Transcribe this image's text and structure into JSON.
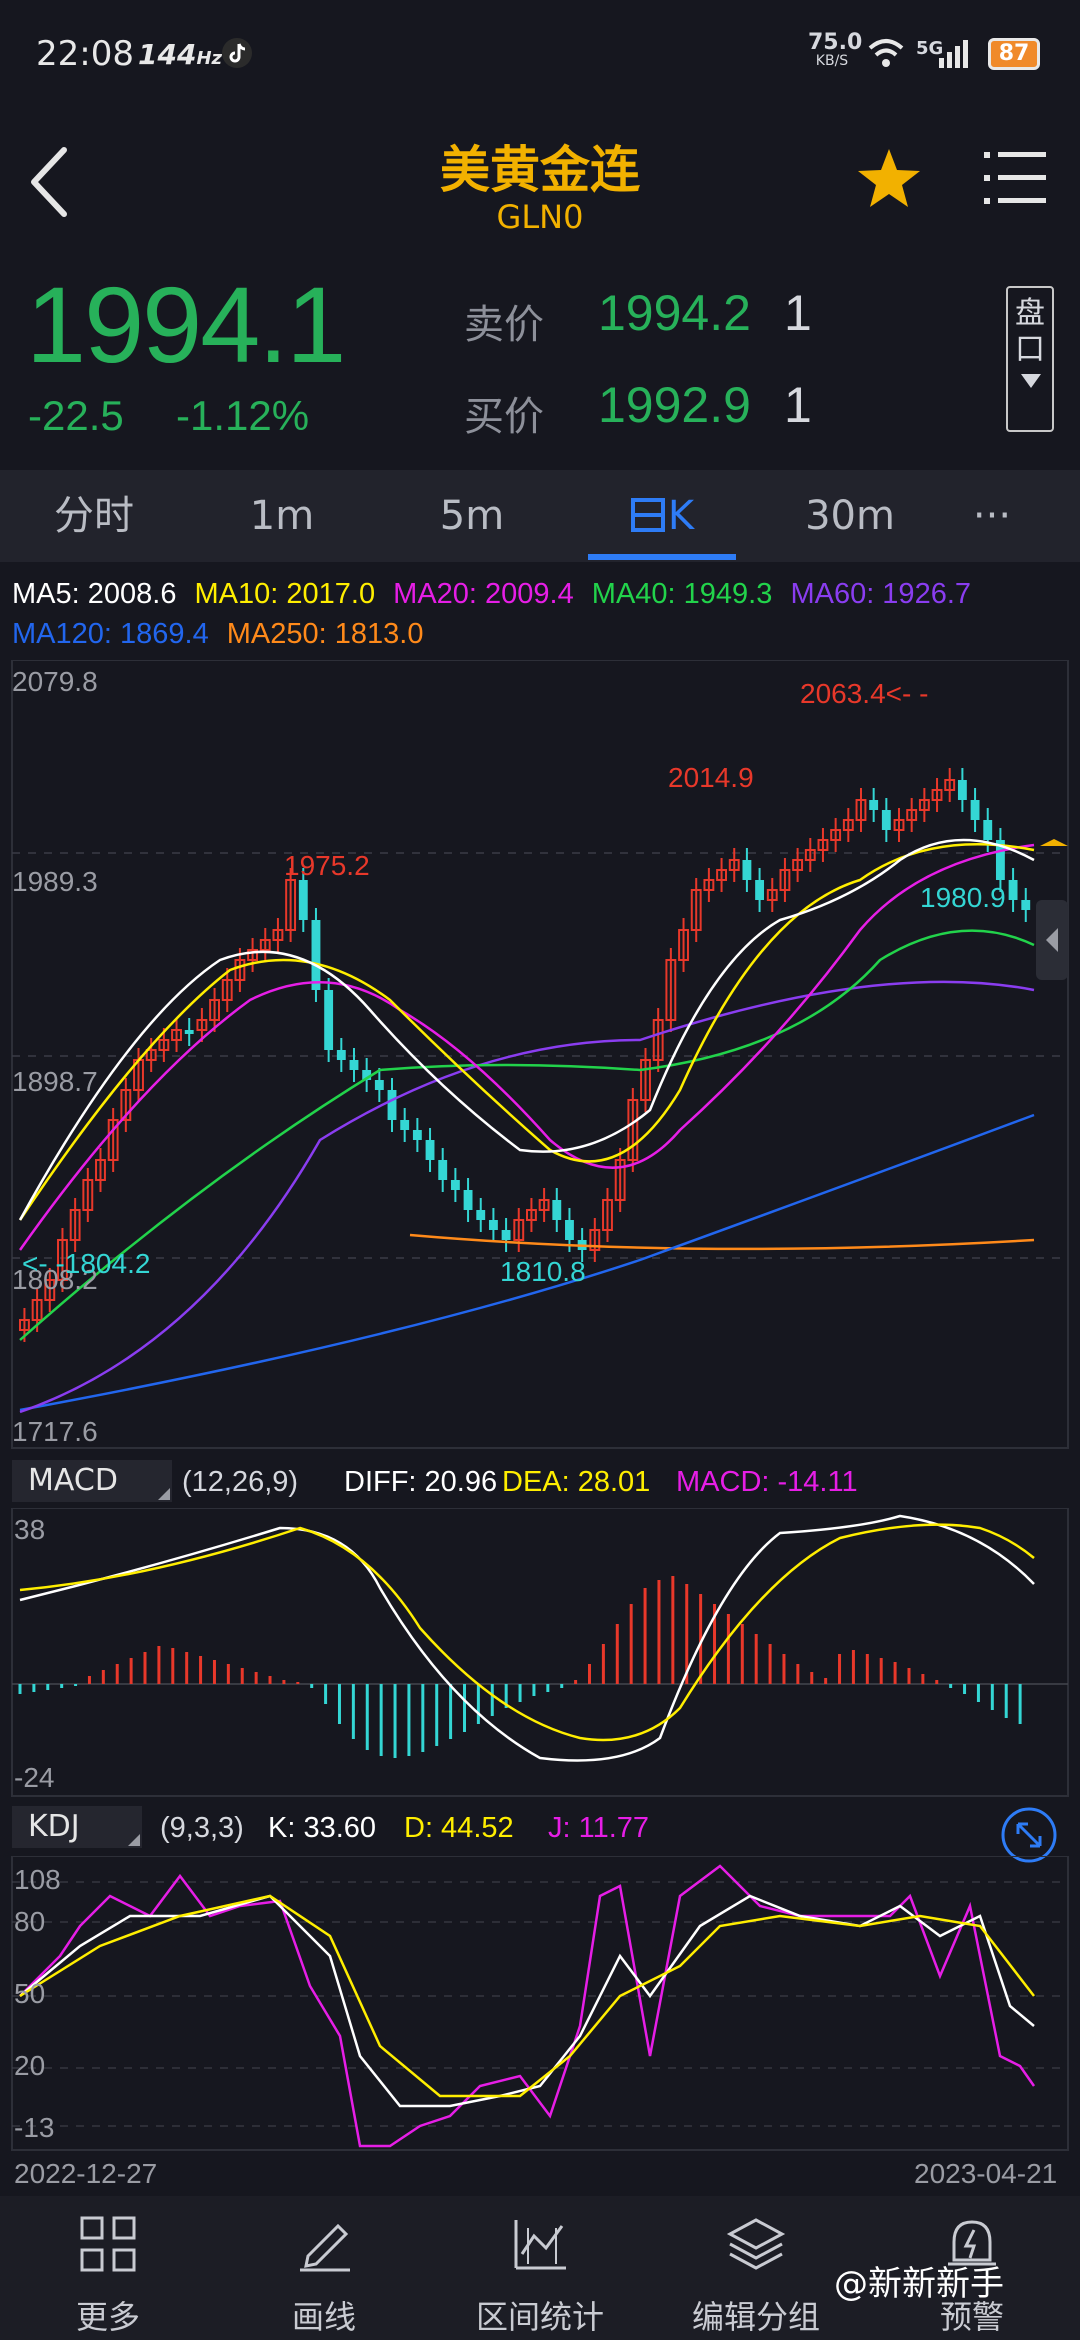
{
  "status_bar": {
    "time": "22:08",
    "refresh": "144",
    "refresh_unit": "Hz",
    "net_speed": "75.0",
    "net_unit": "KB/S",
    "network": "5G",
    "battery": "87"
  },
  "header": {
    "title": "美黄金连",
    "code": "GLN0"
  },
  "quote": {
    "price": "1994.1",
    "change": "-22.5",
    "change_pct": "-1.12%",
    "sell_label": "卖价",
    "sell_price": "1994.2",
    "sell_vol": "1",
    "buy_label": "买价",
    "buy_price": "1992.9",
    "buy_vol": "1",
    "pankou": [
      "盘",
      "口"
    ]
  },
  "tabs": [
    "分时",
    "1m",
    "5m",
    "日K",
    "30m",
    "···"
  ],
  "active_tab": "日K",
  "ma_legend": [
    {
      "text": "MA5: 2008.6",
      "color": "#ffffff"
    },
    {
      "text": "MA10: 2017.0",
      "color": "#ffee00"
    },
    {
      "text": "MA20: 2009.4",
      "color": "#e61ee6"
    },
    {
      "text": "MA40: 1949.3",
      "color": "#22d34b"
    },
    {
      "text": "MA60: 1926.7",
      "color": "#8a3df0"
    },
    {
      "text": "MA120: 1869.4",
      "color": "#2266ee"
    },
    {
      "text": "MA250: 1813.0",
      "color": "#ff8a1a"
    }
  ],
  "price_axis": [
    "2079.8",
    "1989.3",
    "1898.7",
    "1808.2",
    "1717.6"
  ],
  "annotations": {
    "high": "2063.4<- -",
    "mid_high": "2014.9",
    "left_high": "1975.2",
    "low": "1810.8",
    "left_low": "<- -1804.2",
    "last_low": "1980.9"
  },
  "macd": {
    "name": "MACD",
    "params": "(12,26,9)",
    "diff": "DIFF: 20.96",
    "dea": "DEA: 28.01",
    "macd": "MACD: -14.11",
    "axis_top": "38",
    "axis_bottom": "-24"
  },
  "kdj": {
    "name": "KDJ",
    "params": "(9,3,3)",
    "k": "K: 33.60",
    "d": "D: 44.52",
    "j": "J: 11.77",
    "axis": [
      "108",
      "80",
      "50",
      "20",
      "-13"
    ]
  },
  "dates": {
    "start": "2022-12-27",
    "end": "2023-04-21"
  },
  "bottom_nav": [
    "更多",
    "画线",
    "区间统计",
    "编辑分组",
    "预警"
  ],
  "watermark": "@新新新手",
  "colors": {
    "up": "#e8382a",
    "down": "#34d6d4",
    "price_green": "#27b15a",
    "accent": "#2e7cf6",
    "gold": "#f2b100"
  }
}
